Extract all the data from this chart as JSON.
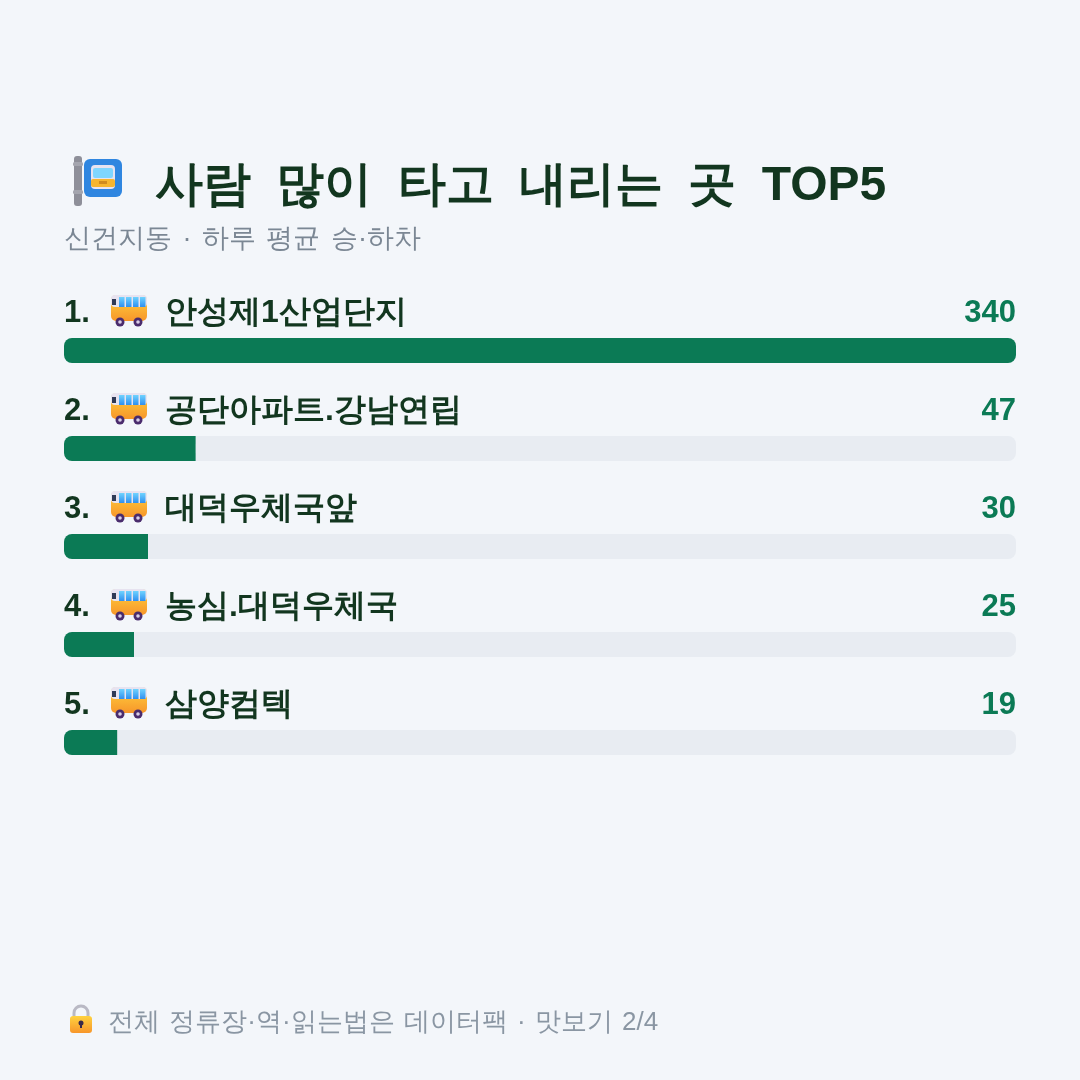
{
  "chart_data": {
    "type": "bar",
    "orientation": "horizontal",
    "title": "사람 많이 타고 내리는 곳 TOP5",
    "subtitle": "신건지동 · 하루 평균 승·하차",
    "categories": [
      "1. 안성제1산업단지",
      "2. 공단아파트.강남연립",
      "3. 대덕우체국앞",
      "4. 농심.대덕우체국",
      "5. 삼양컴텍"
    ],
    "values": [
      340,
      47,
      30,
      25,
      19
    ],
    "color": "#0b7a55",
    "data_labels": true,
    "annotations": [
      "전체 정류장·역·읽는법은 데이터팩 · 맛보기 2/4"
    ]
  }
}
